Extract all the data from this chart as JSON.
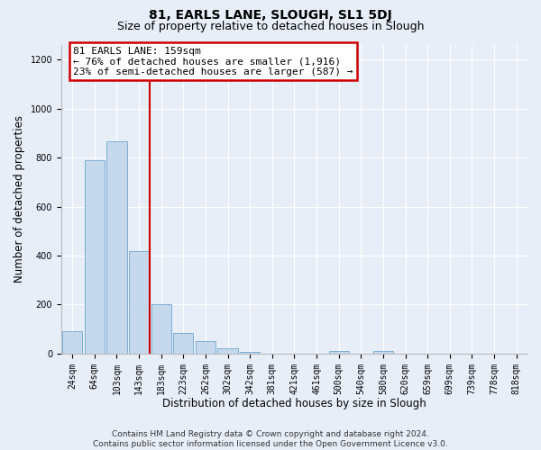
{
  "title": "81, EARLS LANE, SLOUGH, SL1 5DJ",
  "subtitle": "Size of property relative to detached houses in Slough",
  "xlabel": "Distribution of detached houses by size in Slough",
  "ylabel": "Number of detached properties",
  "categories": [
    "24sqm",
    "64sqm",
    "103sqm",
    "143sqm",
    "183sqm",
    "223sqm",
    "262sqm",
    "302sqm",
    "342sqm",
    "381sqm",
    "421sqm",
    "461sqm",
    "500sqm",
    "540sqm",
    "580sqm",
    "620sqm",
    "659sqm",
    "699sqm",
    "739sqm",
    "778sqm",
    "818sqm"
  ],
  "values": [
    90,
    790,
    865,
    420,
    200,
    85,
    50,
    22,
    8,
    0,
    0,
    0,
    10,
    0,
    10,
    0,
    0,
    0,
    0,
    0,
    0
  ],
  "bar_color": "#c6d9ec",
  "bar_edge_color": "#7aafd4",
  "vline_x_index": 3,
  "vline_color": "#cc0000",
  "annotation_line1": "81 EARLS LANE: 159sqm",
  "annotation_line2": "← 76% of detached houses are smaller (1,916)",
  "annotation_line3": "23% of semi-detached houses are larger (587) →",
  "annotation_box_color": "#ffffff",
  "annotation_box_edge_color": "#cc0000",
  "ylim": [
    0,
    1260
  ],
  "yticks": [
    0,
    200,
    400,
    600,
    800,
    1000,
    1200
  ],
  "footer_text": "Contains HM Land Registry data © Crown copyright and database right 2024.\nContains public sector information licensed under the Open Government Licence v3.0.",
  "background_color": "#e8eef8",
  "grid_color": "#ffffff",
  "title_fontsize": 10,
  "subtitle_fontsize": 9,
  "axis_label_fontsize": 8.5,
  "tick_fontsize": 7,
  "footer_fontsize": 6.5,
  "annotation_fontsize": 8
}
